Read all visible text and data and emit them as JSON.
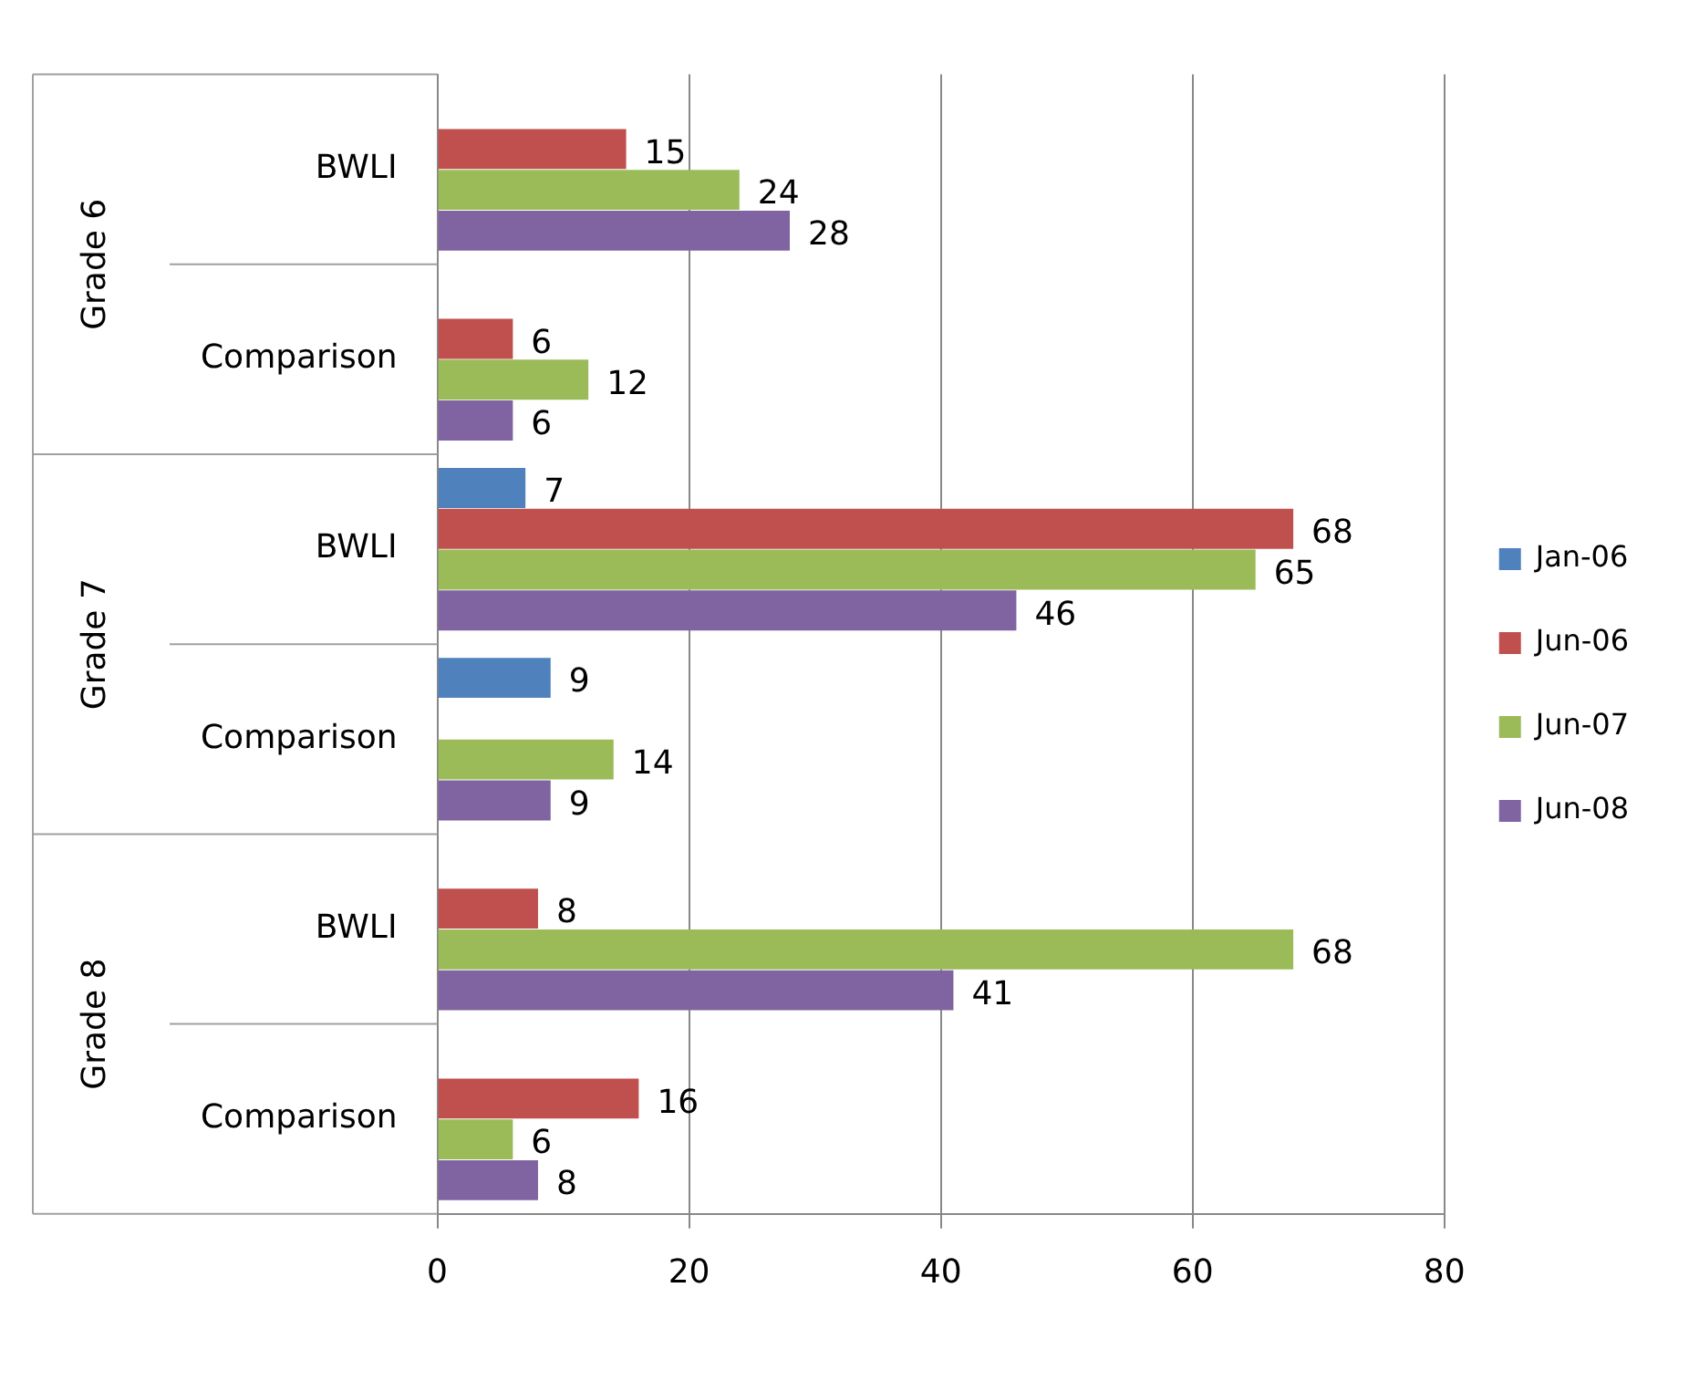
{
  "chart_data": {
    "type": "bar",
    "orientation": "horizontal",
    "categories": [
      "BWLI",
      "Comparison",
      "BWLI",
      "Comparison",
      "BWLI",
      "Comparison"
    ],
    "annotations": [
      "Grade 6",
      "Grade 7",
      "Grade 8"
    ],
    "series": [
      {
        "name": "Jan-06",
        "color": "#4f81bd",
        "values": [
          null,
          null,
          7,
          9,
          null,
          null
        ]
      },
      {
        "name": "Jun-06",
        "color": "#c0504d",
        "values": [
          15,
          6,
          68,
          null,
          8,
          16
        ]
      },
      {
        "name": "Jun-07",
        "color": "#9bbb59",
        "values": [
          24,
          12,
          65,
          14,
          68,
          6
        ]
      },
      {
        "name": "Jun-08",
        "color": "#8064a2",
        "values": [
          28,
          6,
          46,
          9,
          41,
          8
        ]
      }
    ],
    "xlim": [
      0,
      80
    ],
    "xticks": [
      0,
      20,
      40,
      60,
      80
    ],
    "grid": "x",
    "legend": "right",
    "data_labels": true
  }
}
